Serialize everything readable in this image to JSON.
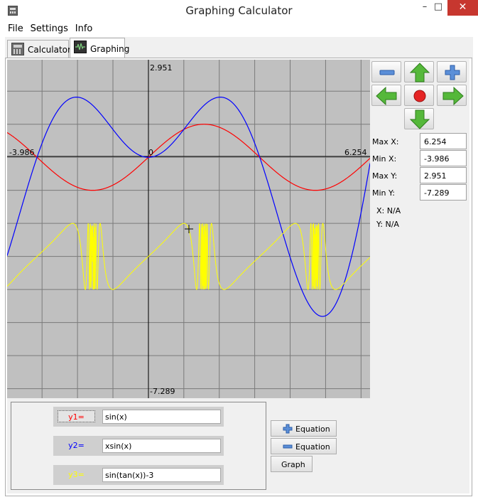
{
  "window": {
    "title": "Graphing Calculator",
    "minimize": "–",
    "maximize": "□",
    "close": "✕"
  },
  "menu": [
    "File",
    "Settings",
    "Info"
  ],
  "tabs": [
    {
      "label": "Calculator",
      "icon": "calculator-icon"
    },
    {
      "label": "Graphing",
      "icon": "graph-icon"
    }
  ],
  "graph": {
    "axis_labels": {
      "top": "2.951",
      "bottom": "-7.289",
      "left": "-3.986",
      "right": "6.254",
      "origin": "0"
    },
    "background": "#c0c0c0",
    "grid_color": "#7a7a7a",
    "curves": [
      {
        "expr": "sin(x)",
        "color": "#ff0000"
      },
      {
        "expr": "xsin(x)",
        "color": "#0000ff"
      },
      {
        "expr": "sin(tan(x))-3",
        "color": "#ffff00"
      }
    ]
  },
  "nav": {
    "zoom_out": "minus-icon",
    "up": "arrow-up-icon",
    "zoom_in": "plus-icon",
    "left": "arrow-left-icon",
    "center": "center-dot-icon",
    "right": "arrow-right-icon",
    "down": "arrow-down-icon"
  },
  "range": {
    "max_x": {
      "label": "Max X:",
      "value": "6.254"
    },
    "min_x": {
      "label": "Min X:",
      "value": "-3.986"
    },
    "max_y": {
      "label": "Max Y:",
      "value": "2.951"
    },
    "min_y": {
      "label": "Min Y:",
      "value": "-7.289"
    }
  },
  "coords": {
    "x": "X: N/A",
    "y": "Y: N/A"
  },
  "equations": [
    {
      "label": "y1=",
      "value": "sin(x)",
      "color": "#ff0000"
    },
    {
      "label": "y2=",
      "value": "xsin(x)",
      "color": "#0000ff"
    },
    {
      "label": "y3=",
      "value": "sin(tan(x))-3",
      "color": "#ffff00"
    }
  ],
  "buttons": {
    "add_equation": "Equation",
    "remove_equation": "Equation",
    "graph": "Graph"
  }
}
